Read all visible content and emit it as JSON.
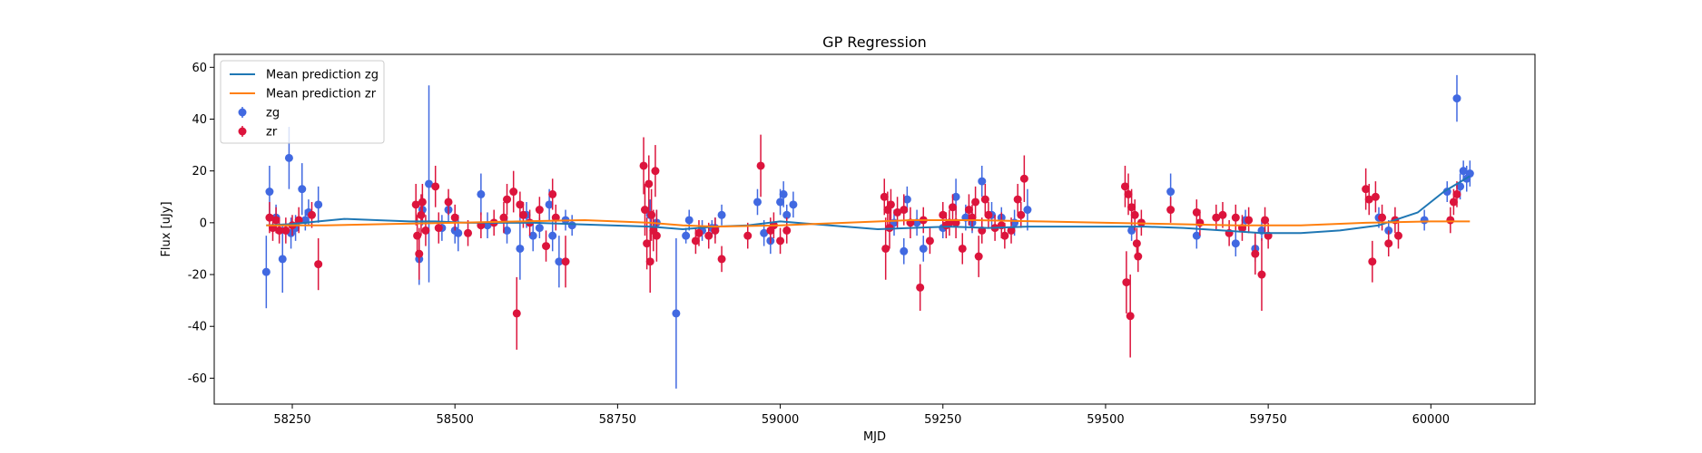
{
  "chart_data": {
    "type": "scatter",
    "title": "GP Regression",
    "xlabel": "MJD",
    "ylabel": "Flux [uJy]",
    "xlim": [
      58130,
      60160
    ],
    "ylim": [
      -70,
      65
    ],
    "x_ticks": [
      58250,
      58500,
      58750,
      59000,
      59250,
      59500,
      59750,
      60000
    ],
    "y_ticks": [
      -60,
      -40,
      -20,
      0,
      20,
      40,
      60
    ],
    "grid": false,
    "legend_position": "top-left",
    "legend": [
      "Mean prediction zg",
      "Mean prediction zr",
      "zg",
      "zr"
    ],
    "lines": [
      {
        "name": "Mean prediction zg",
        "color": "#1f77b4",
        "x": [
          58210,
          58250,
          58290,
          58330,
          58380,
          58430,
          58470,
          58520,
          58570,
          58620,
          58680,
          58740,
          58800,
          58850,
          58900,
          58950,
          59000,
          59050,
          59100,
          59150,
          59200,
          59260,
          59320,
          59380,
          59440,
          59500,
          59560,
          59620,
          59680,
          59740,
          59800,
          59860,
          59920,
          59980,
          60020,
          60060
        ],
        "y": [
          -1,
          -0.5,
          0.5,
          1.5,
          1,
          0.5,
          0.5,
          0,
          0,
          0,
          -0.5,
          -1,
          -1.5,
          -2.5,
          -1.5,
          -1,
          0.5,
          -0.5,
          -1.5,
          -2.5,
          -2,
          -1.5,
          -2,
          -1.5,
          -1.5,
          -1.5,
          -1.5,
          -2,
          -3,
          -4,
          -4,
          -3,
          -1,
          4,
          12,
          18
        ]
      },
      {
        "name": "Mean prediction zr",
        "color": "#ff7f0e",
        "x": [
          58210,
          58300,
          58400,
          58500,
          58600,
          58700,
          58800,
          58850,
          58900,
          59000,
          59100,
          59200,
          59300,
          59400,
          59500,
          59600,
          59700,
          59800,
          59900,
          60000,
          60060
        ],
        "y": [
          -1,
          -1,
          -0.5,
          0,
          0.5,
          1,
          0,
          -1,
          -1.5,
          -1,
          0,
          1,
          1,
          0.5,
          0,
          -0.5,
          -1,
          -1,
          0,
          0.5,
          0.5
        ]
      }
    ],
    "series": [
      {
        "name": "zg",
        "color": "#4169e1",
        "points": [
          [
            58210,
            -19,
            14
          ],
          [
            58215,
            12,
            10
          ],
          [
            58225,
            2,
            5
          ],
          [
            58235,
            -14,
            13
          ],
          [
            58245,
            25,
            12
          ],
          [
            58248,
            -4,
            6
          ],
          [
            58255,
            -2,
            5
          ],
          [
            58265,
            13,
            10
          ],
          [
            58270,
            1,
            4
          ],
          [
            58275,
            4,
            5
          ],
          [
            58290,
            7,
            7
          ],
          [
            58445,
            -14,
            10
          ],
          [
            58450,
            5,
            6
          ],
          [
            58460,
            15,
            38
          ],
          [
            58480,
            -2,
            5
          ],
          [
            58490,
            5,
            5
          ],
          [
            58500,
            -3,
            5
          ],
          [
            58505,
            -4,
            7
          ],
          [
            58540,
            11,
            8
          ],
          [
            58550,
            -1,
            5
          ],
          [
            58580,
            -3,
            5
          ],
          [
            58600,
            -10,
            12
          ],
          [
            58610,
            3,
            5
          ],
          [
            58620,
            -5,
            6
          ],
          [
            58630,
            -2,
            4
          ],
          [
            58645,
            7,
            6
          ],
          [
            58650,
            -5,
            6
          ],
          [
            58660,
            -15,
            10
          ],
          [
            58670,
            1,
            4
          ],
          [
            58680,
            -1,
            4
          ],
          [
            58800,
            3,
            6
          ],
          [
            58810,
            0,
            5
          ],
          [
            58840,
            -35,
            29
          ],
          [
            58855,
            -5,
            3
          ],
          [
            58860,
            1,
            4
          ],
          [
            58880,
            -3,
            4
          ],
          [
            58895,
            -2,
            3
          ],
          [
            58900,
            -2,
            4
          ],
          [
            58910,
            3,
            4
          ],
          [
            58965,
            8,
            5
          ],
          [
            58975,
            -4,
            5
          ],
          [
            58985,
            -7,
            5
          ],
          [
            59000,
            8,
            5
          ],
          [
            59005,
            11,
            5
          ],
          [
            59010,
            3,
            4
          ],
          [
            59020,
            7,
            5
          ],
          [
            59175,
            0,
            5
          ],
          [
            59190,
            -11,
            5
          ],
          [
            59195,
            9,
            5
          ],
          [
            59210,
            0,
            5
          ],
          [
            59220,
            -10,
            5
          ],
          [
            59250,
            -2,
            4
          ],
          [
            59270,
            10,
            7
          ],
          [
            59285,
            2,
            5
          ],
          [
            59295,
            0,
            4
          ],
          [
            59310,
            16,
            6
          ],
          [
            59325,
            3,
            5
          ],
          [
            59340,
            2,
            4
          ],
          [
            59360,
            0,
            5
          ],
          [
            59380,
            5,
            8
          ],
          [
            59540,
            -3,
            4
          ],
          [
            59600,
            12,
            7
          ],
          [
            59640,
            -5,
            5
          ],
          [
            59700,
            -8,
            5
          ],
          [
            59715,
            1,
            4
          ],
          [
            59730,
            -10,
            5
          ],
          [
            59740,
            -3,
            4
          ],
          [
            59920,
            2,
            4
          ],
          [
            59935,
            -3,
            4
          ],
          [
            59990,
            1,
            4
          ],
          [
            60025,
            12,
            4
          ],
          [
            60040,
            48,
            9
          ],
          [
            60045,
            14,
            5
          ],
          [
            60050,
            20,
            4
          ],
          [
            60055,
            17,
            5
          ],
          [
            60060,
            19,
            5
          ]
        ]
      },
      {
        "name": "zr",
        "color": "#dc143c",
        "points": [
          [
            58215,
            2,
            6
          ],
          [
            58220,
            -2,
            5
          ],
          [
            58225,
            1,
            5
          ],
          [
            58230,
            -3,
            5
          ],
          [
            58240,
            -3,
            5
          ],
          [
            58250,
            -1,
            4
          ],
          [
            58260,
            1,
            5
          ],
          [
            58280,
            3,
            5
          ],
          [
            58290,
            -16,
            10
          ],
          [
            58440,
            7,
            8
          ],
          [
            58442,
            -5,
            8
          ],
          [
            58445,
            -12,
            10
          ],
          [
            58448,
            3,
            8
          ],
          [
            58450,
            8,
            7
          ],
          [
            58455,
            -3,
            6
          ],
          [
            58470,
            14,
            8
          ],
          [
            58475,
            -2,
            6
          ],
          [
            58490,
            8,
            5
          ],
          [
            58500,
            2,
            5
          ],
          [
            58520,
            -4,
            5
          ],
          [
            58540,
            -1,
            5
          ],
          [
            58560,
            0,
            5
          ],
          [
            58575,
            2,
            6
          ],
          [
            58580,
            9,
            6
          ],
          [
            58590,
            12,
            8
          ],
          [
            58595,
            -35,
            14
          ],
          [
            58600,
            7,
            5
          ],
          [
            58605,
            3,
            5
          ],
          [
            58615,
            0,
            5
          ],
          [
            58630,
            5,
            5
          ],
          [
            58640,
            -9,
            6
          ],
          [
            58650,
            11,
            6
          ],
          [
            58655,
            2,
            5
          ],
          [
            58670,
            -15,
            10
          ],
          [
            58790,
            22,
            11
          ],
          [
            58792,
            5,
            10
          ],
          [
            58795,
            -8,
            10
          ],
          [
            58798,
            15,
            11
          ],
          [
            58800,
            -15,
            12
          ],
          [
            58802,
            3,
            10
          ],
          [
            58805,
            -3,
            8
          ],
          [
            58808,
            20,
            10
          ],
          [
            58810,
            -5,
            10
          ],
          [
            58870,
            -7,
            5
          ],
          [
            58875,
            -4,
            5
          ],
          [
            58890,
            -5,
            5
          ],
          [
            58900,
            -3,
            5
          ],
          [
            58910,
            -14,
            5
          ],
          [
            58950,
            -5,
            5
          ],
          [
            58970,
            22,
            12
          ],
          [
            58985,
            -3,
            5
          ],
          [
            58990,
            -1,
            5
          ],
          [
            59000,
            -7,
            5
          ],
          [
            59010,
            -3,
            5
          ],
          [
            59160,
            10,
            7
          ],
          [
            59162,
            -10,
            12
          ],
          [
            59165,
            5,
            7
          ],
          [
            59168,
            -2,
            8
          ],
          [
            59170,
            7,
            6
          ],
          [
            59180,
            4,
            6
          ],
          [
            59190,
            5,
            6
          ],
          [
            59200,
            0,
            6
          ],
          [
            59215,
            -25,
            9
          ],
          [
            59220,
            1,
            5
          ],
          [
            59230,
            -7,
            5
          ],
          [
            59250,
            3,
            5
          ],
          [
            59255,
            -1,
            5
          ],
          [
            59260,
            0,
            5
          ],
          [
            59265,
            6,
            5
          ],
          [
            59270,
            0,
            6
          ],
          [
            59280,
            -10,
            6
          ],
          [
            59290,
            5,
            6
          ],
          [
            59295,
            2,
            5
          ],
          [
            59300,
            8,
            6
          ],
          [
            59305,
            -13,
            8
          ],
          [
            59310,
            -3,
            5
          ],
          [
            59315,
            9,
            6
          ],
          [
            59320,
            3,
            5
          ],
          [
            59330,
            -2,
            5
          ],
          [
            59340,
            -1,
            5
          ],
          [
            59345,
            -5,
            5
          ],
          [
            59355,
            -3,
            5
          ],
          [
            59365,
            9,
            6
          ],
          [
            59370,
            3,
            5
          ],
          [
            59375,
            17,
            9
          ],
          [
            59530,
            14,
            8
          ],
          [
            59532,
            -23,
            12
          ],
          [
            59535,
            11,
            8
          ],
          [
            59538,
            -36,
            16
          ],
          [
            59540,
            6,
            7
          ],
          [
            59545,
            3,
            6
          ],
          [
            59548,
            -8,
            6
          ],
          [
            59550,
            -13,
            6
          ],
          [
            59555,
            0,
            5
          ],
          [
            59600,
            5,
            5
          ],
          [
            59640,
            4,
            5
          ],
          [
            59645,
            0,
            5
          ],
          [
            59670,
            2,
            5
          ],
          [
            59680,
            3,
            5
          ],
          [
            59690,
            -4,
            5
          ],
          [
            59700,
            2,
            5
          ],
          [
            59710,
            -2,
            5
          ],
          [
            59720,
            1,
            5
          ],
          [
            59730,
            -12,
            8
          ],
          [
            59740,
            -20,
            14
          ],
          [
            59745,
            1,
            5
          ],
          [
            59750,
            -5,
            5
          ],
          [
            59900,
            13,
            8
          ],
          [
            59905,
            9,
            6
          ],
          [
            59910,
            -15,
            8
          ],
          [
            59915,
            10,
            6
          ],
          [
            59925,
            2,
            5
          ],
          [
            59935,
            -8,
            5
          ],
          [
            59945,
            1,
            5
          ],
          [
            59950,
            -5,
            5
          ],
          [
            60030,
            1,
            5
          ],
          [
            60035,
            8,
            5
          ],
          [
            60040,
            11,
            5
          ]
        ]
      }
    ]
  }
}
